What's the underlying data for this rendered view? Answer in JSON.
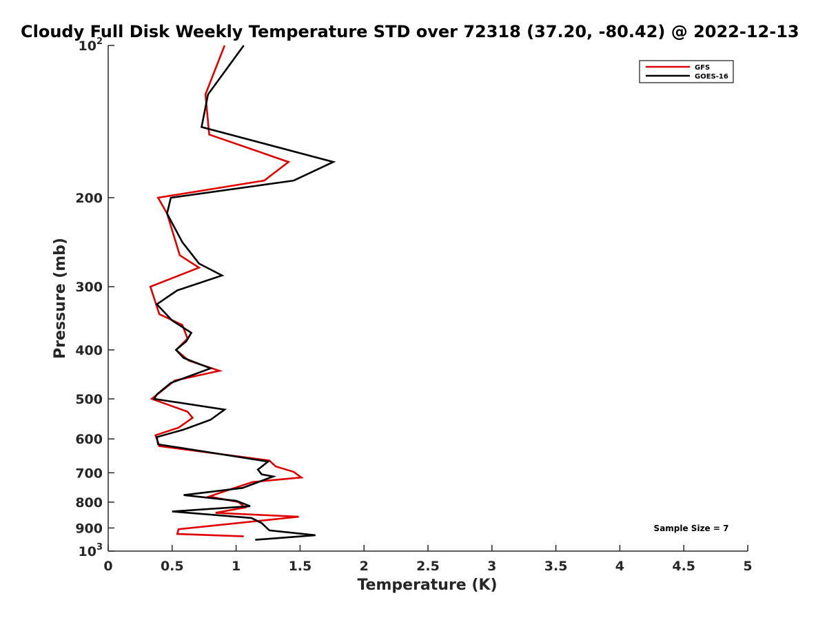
{
  "chart_data": {
    "type": "line",
    "title": "Cloudy Full Disk Weekly Temperature STD over 72318 (37.20, -80.42) @ 2022-12-13",
    "xlabel": "Temperature (K)",
    "ylabel": "Pressure (mb)",
    "xlim": [
      0,
      5
    ],
    "ylim": [
      100,
      1000
    ],
    "y_scale": "log",
    "y_reversed": true,
    "x_ticks": [
      0,
      0.5,
      1,
      1.5,
      2,
      2.5,
      3,
      3.5,
      4,
      4.5,
      5
    ],
    "x_tick_labels": [
      "0",
      "0.5",
      "1",
      "1.5",
      "2",
      "2.5",
      "3",
      "3.5",
      "4",
      "4.5",
      "5"
    ],
    "y_ticks": [
      100,
      200,
      300,
      400,
      500,
      600,
      700,
      800,
      900,
      1000
    ],
    "y_tick_labels": [
      {
        "base": "10",
        "exp": "2"
      },
      {
        "text": "200"
      },
      {
        "text": "300"
      },
      {
        "text": "400"
      },
      {
        "text": "500"
      },
      {
        "text": "600"
      },
      {
        "text": "700"
      },
      {
        "text": "800"
      },
      {
        "text": "900"
      },
      {
        "base": "10",
        "exp": "3"
      }
    ],
    "grid": false,
    "legend_position": "top-right",
    "annotation": "Sample Size = 7",
    "series": [
      {
        "name": "GFS",
        "color": "#e00000",
        "points": [
          [
            0.91,
            100
          ],
          [
            0.76,
            125
          ],
          [
            0.79,
            150
          ],
          [
            1.41,
            170
          ],
          [
            1.22,
            185
          ],
          [
            0.39,
            200
          ],
          [
            0.46,
            215
          ],
          [
            0.56,
            260
          ],
          [
            0.71,
            275
          ],
          [
            0.33,
            300
          ],
          [
            0.4,
            340
          ],
          [
            0.58,
            357
          ],
          [
            0.62,
            380
          ],
          [
            0.53,
            400
          ],
          [
            0.63,
            420
          ],
          [
            0.87,
            440
          ],
          [
            0.52,
            460
          ],
          [
            0.34,
            500
          ],
          [
            0.62,
            530
          ],
          [
            0.66,
            545
          ],
          [
            0.55,
            570
          ],
          [
            0.37,
            590
          ],
          [
            0.4,
            620
          ],
          [
            1.26,
            662
          ],
          [
            1.31,
            680
          ],
          [
            1.45,
            697
          ],
          [
            1.51,
            715
          ],
          [
            1.13,
            730
          ],
          [
            0.92,
            760
          ],
          [
            0.79,
            780
          ],
          [
            1.02,
            800
          ],
          [
            1.07,
            820
          ],
          [
            0.84,
            840
          ],
          [
            1.49,
            855
          ],
          [
            0.55,
            905
          ],
          [
            0.54,
            925
          ],
          [
            1.06,
            935
          ]
        ]
      },
      {
        "name": "GOES-16",
        "color": "#000000",
        "points": [
          [
            1.06,
            100
          ],
          [
            0.78,
            125
          ],
          [
            0.73,
            145
          ],
          [
            1.76,
            170
          ],
          [
            1.45,
            185
          ],
          [
            0.49,
            200
          ],
          [
            0.46,
            215
          ],
          [
            0.58,
            245
          ],
          [
            0.71,
            270
          ],
          [
            0.89,
            285
          ],
          [
            0.54,
            305
          ],
          [
            0.38,
            325
          ],
          [
            0.5,
            350
          ],
          [
            0.65,
            370
          ],
          [
            0.61,
            385
          ],
          [
            0.53,
            400
          ],
          [
            0.59,
            415
          ],
          [
            0.8,
            435
          ],
          [
            0.49,
            465
          ],
          [
            0.38,
            490
          ],
          [
            0.36,
            500
          ],
          [
            0.91,
            525
          ],
          [
            0.8,
            550
          ],
          [
            0.59,
            575
          ],
          [
            0.38,
            595
          ],
          [
            0.39,
            615
          ],
          [
            1.25,
            665
          ],
          [
            1.17,
            690
          ],
          [
            1.2,
            705
          ],
          [
            1.29,
            712
          ],
          [
            1.05,
            750
          ],
          [
            0.59,
            775
          ],
          [
            1.0,
            795
          ],
          [
            1.11,
            815
          ],
          [
            0.5,
            835
          ],
          [
            1.12,
            860
          ],
          [
            1.2,
            880
          ],
          [
            1.26,
            910
          ],
          [
            1.62,
            930
          ],
          [
            1.15,
            950
          ]
        ]
      }
    ]
  }
}
